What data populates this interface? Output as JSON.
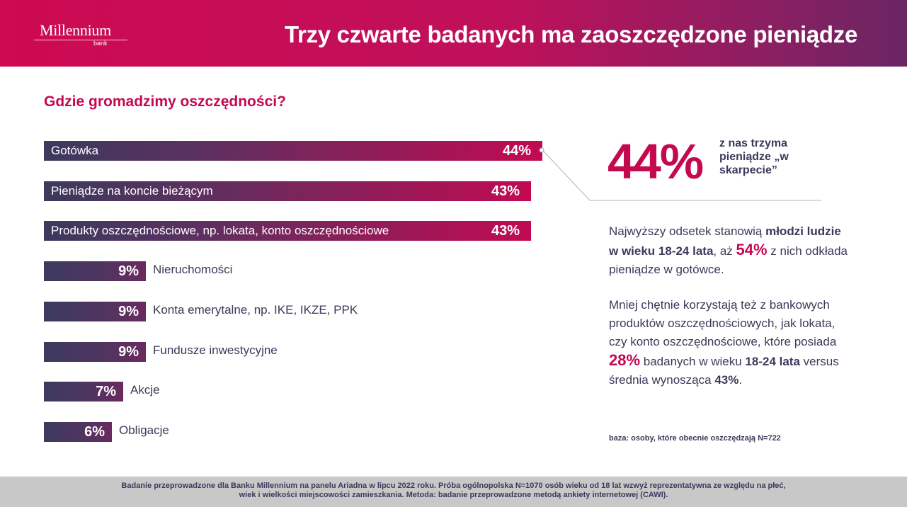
{
  "header": {
    "logo_name": "Millennium",
    "logo_sub": "bank",
    "title": "Trzy czwarte badanych ma zaoszczędzone pieniądze"
  },
  "subtitle": "Gdzie gromadzimy oszczędności?",
  "chart_data": {
    "type": "bar",
    "orientation": "horizontal",
    "title": "Gdzie gromadzimy oszczędności?",
    "categories": [
      "Gotówka",
      "Pieniądze na koncie bieżącym",
      "Produkty oszczędnościowe, np. lokata, konto oszczędnościowe",
      "Nieruchomości",
      "Konta emerytalne, np. IKE, IKZE, PPK",
      "Fundusze inwestycyjne",
      "Akcje",
      "Obligacje"
    ],
    "values": [
      44,
      43,
      43,
      9,
      9,
      9,
      7,
      6
    ],
    "value_labels": [
      "44%",
      "43%",
      "43%",
      "9%",
      "9%",
      "9%",
      "7%",
      "6%"
    ],
    "unit": "%",
    "grid": false,
    "legend": "none"
  },
  "highlight": {
    "value": "44%",
    "caption": "z nas trzyma pieniądze „w skarpecie”"
  },
  "text1": {
    "a": "Najwyższy odsetek stanowią ",
    "b": "młodzi ludzie w wieku 18-24 lata",
    "c": ", aż ",
    "d": "54%",
    "e": " z nich odkłada pieniądze w gotówce."
  },
  "text2": {
    "a": "Mniej chętnie korzystają też z bankowych produktów oszczędnościowych, jak lokata, czy konto oszczędnościowe, które posiada ",
    "b": "28%",
    "c": " badanych w wieku ",
    "d": "18-24 lata",
    "e": " versus średnia wynosząca ",
    "f": "43%",
    "g": "."
  },
  "base_note": "baza: osoby, które obecnie oszczędzają N=722",
  "footer": {
    "line1": "Badanie przeprowadzone dla Banku Millennium na panelu Ariadna w lipcu 2022 roku. Próba ogólnopolska N=1070 osób wieku od 18 lat wzwyż reprezentatywna ze względu na płeć,",
    "line2": "wiek i wielkości miejscowości zamieszkania. Metoda: badanie przeprowadzone metodą ankiety internetowej (CAWI)."
  }
}
